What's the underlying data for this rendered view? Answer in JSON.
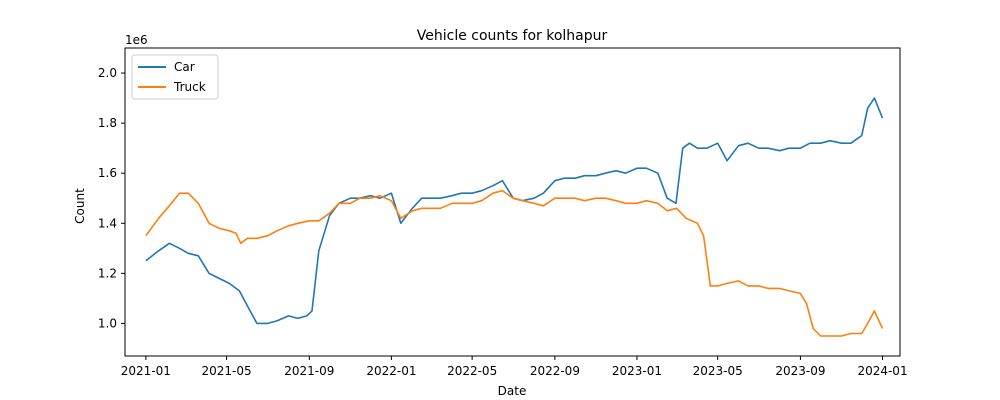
{
  "chart_data": {
    "type": "line",
    "title": "Vehicle counts for kolhapur",
    "xlabel": "Date",
    "ylabel": "Count",
    "y_offset_label": "1e6",
    "xlim": [
      "2020-12-01",
      "2024-01-27"
    ],
    "ylim": [
      0.87,
      2.1
    ],
    "y_ticks": [
      1.0,
      1.2,
      1.4,
      1.6,
      1.8,
      2.0
    ],
    "y_tick_labels": [
      "1.0",
      "1.2",
      "1.4",
      "1.6",
      "1.8",
      "2.0"
    ],
    "x_ticks": [
      "2021-01-01",
      "2021-05-01",
      "2021-09-01",
      "2022-01-01",
      "2022-05-01",
      "2022-09-01",
      "2023-01-01",
      "2023-05-01",
      "2023-09-01",
      "2024-01-01"
    ],
    "x_tick_labels": [
      "2021-01",
      "2021-05",
      "2021-09",
      "2022-01",
      "2022-05",
      "2022-09",
      "2023-01",
      "2023-05",
      "2023-09",
      "2024-01"
    ],
    "legend_position": "upper-left",
    "series": [
      {
        "name": "Car",
        "color": "#1f77b4",
        "x": [
          "2021-01-01",
          "2021-01-20",
          "2021-02-05",
          "2021-02-20",
          "2021-03-05",
          "2021-03-20",
          "2021-04-05",
          "2021-04-20",
          "2021-05-05",
          "2021-05-20",
          "2021-06-01",
          "2021-06-15",
          "2021-07-01",
          "2021-07-15",
          "2021-08-01",
          "2021-08-15",
          "2021-08-28",
          "2021-09-05",
          "2021-09-15",
          "2021-10-01",
          "2021-10-15",
          "2021-11-01",
          "2021-11-15",
          "2021-12-01",
          "2021-12-15",
          "2022-01-01",
          "2022-01-15",
          "2022-02-01",
          "2022-02-15",
          "2022-03-01",
          "2022-03-15",
          "2022-04-01",
          "2022-04-15",
          "2022-05-01",
          "2022-05-15",
          "2022-06-01",
          "2022-06-15",
          "2022-07-01",
          "2022-07-15",
          "2022-08-01",
          "2022-08-15",
          "2022-09-01",
          "2022-09-15",
          "2022-10-01",
          "2022-10-15",
          "2022-11-01",
          "2022-11-15",
          "2022-12-01",
          "2022-12-15",
          "2023-01-01",
          "2023-01-15",
          "2023-02-01",
          "2023-02-15",
          "2023-02-28",
          "2023-03-10",
          "2023-03-20",
          "2023-04-01",
          "2023-04-15",
          "2023-05-01",
          "2023-05-15",
          "2023-06-01",
          "2023-06-15",
          "2023-07-01",
          "2023-07-15",
          "2023-08-01",
          "2023-08-15",
          "2023-09-01",
          "2023-09-15",
          "2023-10-01",
          "2023-10-15",
          "2023-11-01",
          "2023-11-15",
          "2023-12-01",
          "2023-12-10",
          "2023-12-20",
          "2024-01-01"
        ],
        "values": [
          1.25,
          1.29,
          1.32,
          1.3,
          1.28,
          1.27,
          1.2,
          1.18,
          1.16,
          1.13,
          1.07,
          1.0,
          1.0,
          1.01,
          1.03,
          1.02,
          1.03,
          1.05,
          1.29,
          1.43,
          1.48,
          1.5,
          1.5,
          1.51,
          1.5,
          1.52,
          1.4,
          1.46,
          1.5,
          1.5,
          1.5,
          1.51,
          1.52,
          1.52,
          1.53,
          1.55,
          1.57,
          1.5,
          1.49,
          1.5,
          1.52,
          1.57,
          1.58,
          1.58,
          1.59,
          1.59,
          1.6,
          1.61,
          1.6,
          1.62,
          1.62,
          1.6,
          1.5,
          1.48,
          1.7,
          1.72,
          1.7,
          1.7,
          1.72,
          1.65,
          1.71,
          1.72,
          1.7,
          1.7,
          1.69,
          1.7,
          1.7,
          1.72,
          1.72,
          1.73,
          1.72,
          1.72,
          1.75,
          1.86,
          1.9,
          1.82
        ]
      },
      {
        "name": "Truck",
        "color": "#ff7f0e",
        "x": [
          "2021-01-01",
          "2021-01-20",
          "2021-02-05",
          "2021-02-20",
          "2021-03-05",
          "2021-03-20",
          "2021-04-05",
          "2021-04-20",
          "2021-05-05",
          "2021-05-15",
          "2021-05-22",
          "2021-06-01",
          "2021-06-15",
          "2021-07-01",
          "2021-07-15",
          "2021-08-01",
          "2021-08-15",
          "2021-09-01",
          "2021-09-15",
          "2021-10-01",
          "2021-10-15",
          "2021-11-01",
          "2021-11-15",
          "2021-12-01",
          "2021-12-15",
          "2022-01-01",
          "2022-01-15",
          "2022-02-01",
          "2022-02-15",
          "2022-03-01",
          "2022-03-15",
          "2022-04-01",
          "2022-04-15",
          "2022-05-01",
          "2022-05-15",
          "2022-06-01",
          "2022-06-15",
          "2022-07-01",
          "2022-07-15",
          "2022-08-01",
          "2022-08-15",
          "2022-09-01",
          "2022-09-15",
          "2022-10-01",
          "2022-10-15",
          "2022-11-01",
          "2022-11-15",
          "2022-12-01",
          "2022-12-15",
          "2023-01-01",
          "2023-01-15",
          "2023-02-01",
          "2023-02-15",
          "2023-03-01",
          "2023-03-15",
          "2023-04-01",
          "2023-04-10",
          "2023-04-20",
          "2023-05-01",
          "2023-05-15",
          "2023-06-01",
          "2023-06-15",
          "2023-07-01",
          "2023-07-15",
          "2023-08-01",
          "2023-08-15",
          "2023-09-01",
          "2023-09-10",
          "2023-09-20",
          "2023-10-01",
          "2023-10-15",
          "2023-11-01",
          "2023-11-15",
          "2023-12-01",
          "2023-12-10",
          "2023-12-20",
          "2024-01-01"
        ],
        "values": [
          1.35,
          1.42,
          1.47,
          1.52,
          1.52,
          1.48,
          1.4,
          1.38,
          1.37,
          1.36,
          1.32,
          1.34,
          1.34,
          1.35,
          1.37,
          1.39,
          1.4,
          1.41,
          1.41,
          1.44,
          1.48,
          1.48,
          1.5,
          1.5,
          1.51,
          1.49,
          1.42,
          1.45,
          1.46,
          1.46,
          1.46,
          1.48,
          1.48,
          1.48,
          1.49,
          1.52,
          1.53,
          1.5,
          1.49,
          1.48,
          1.47,
          1.5,
          1.5,
          1.5,
          1.49,
          1.5,
          1.5,
          1.49,
          1.48,
          1.48,
          1.49,
          1.48,
          1.45,
          1.46,
          1.42,
          1.4,
          1.35,
          1.15,
          1.15,
          1.16,
          1.17,
          1.15,
          1.15,
          1.14,
          1.14,
          1.13,
          1.12,
          1.08,
          0.98,
          0.95,
          0.95,
          0.95,
          0.96,
          0.96,
          1.0,
          1.05,
          0.98
        ]
      }
    ]
  }
}
